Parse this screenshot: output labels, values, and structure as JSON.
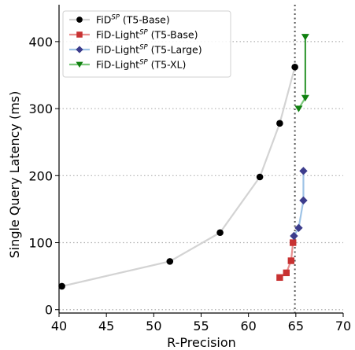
{
  "chart_data": {
    "type": "line",
    "xlabel": "R-Precision",
    "ylabel": "Single Query Latency (ms)",
    "xlim": [
      40,
      70
    ],
    "ylim": [
      -5,
      455
    ],
    "xticks": [
      "40",
      "45",
      "50",
      "55",
      "60",
      "65",
      "70"
    ],
    "yticks": [
      "0",
      "100",
      "200",
      "300",
      "400"
    ],
    "grid": "horizontal-dotted",
    "legend_position": "top-left",
    "vline_x": 64.9,
    "series": [
      {
        "name": "FiD",
        "name_sup": "SP",
        "name_tail": " (T5-Base)",
        "marker": "circle",
        "marker_color": "#000000",
        "line_color": "#d3d3d3",
        "arrow": false,
        "x": [
          40.3,
          51.7,
          57.0,
          61.2,
          63.3,
          64.9
        ],
        "y": [
          35,
          72,
          115,
          198,
          278,
          362
        ]
      },
      {
        "name": "FiD-Light",
        "name_sup": "SP",
        "name_tail": " (T5-Base)",
        "marker": "square",
        "marker_color": "#c83232",
        "line_color": "#e89090",
        "arrow": false,
        "x": [
          63.3,
          64.0,
          64.5,
          64.7
        ],
        "y": [
          48,
          55,
          73,
          100
        ]
      },
      {
        "name": "FiD-Light",
        "name_sup": "SP",
        "name_tail": " (T5-Large)",
        "marker": "diamond",
        "marker_color": "#3c3c8c",
        "line_color": "#9ec3e6",
        "arrow": false,
        "x": [
          64.8,
          65.3,
          65.8,
          65.8
        ],
        "y": [
          110,
          122,
          163,
          207
        ]
      },
      {
        "name": "FiD-Light",
        "name_sup": "SP",
        "name_tail": " (T5-XL)",
        "marker": "triangle-down",
        "marker_color": "#108010",
        "line_color": "#7ec87e",
        "arrow": true,
        "x": [
          65.3,
          66.0,
          66.0
        ],
        "y": [
          300,
          316,
          407
        ]
      }
    ]
  }
}
